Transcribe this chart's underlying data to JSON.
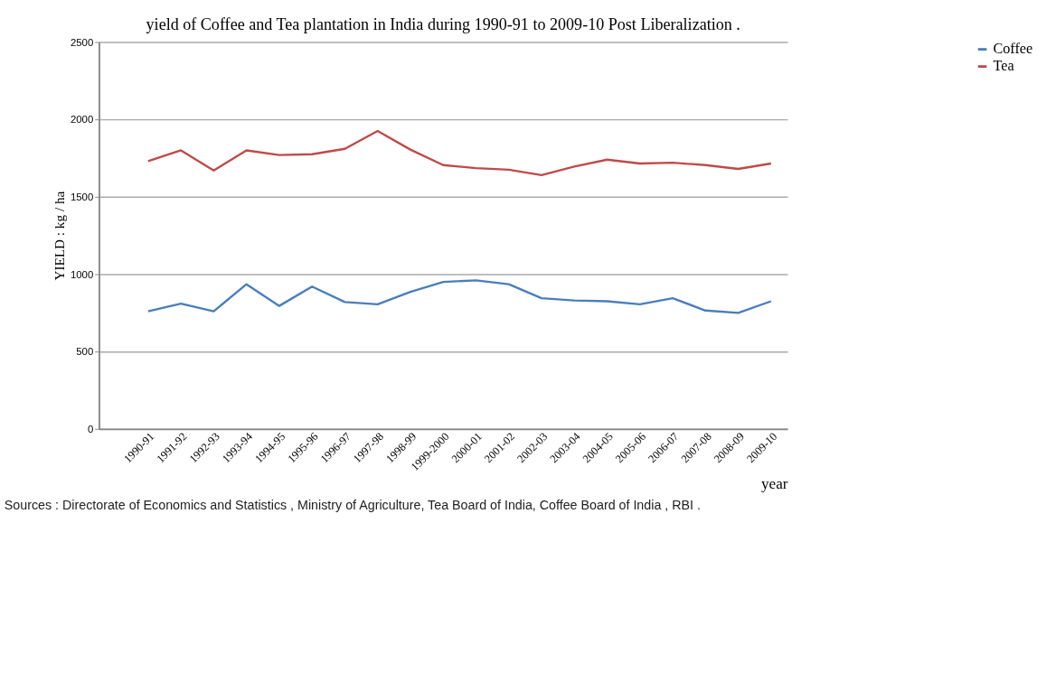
{
  "chart_data": {
    "type": "line",
    "title": "yield of Coffee and Tea plantation in India during  1990-91 to 2009-10 Post Liberalization .",
    "xlabel": "year",
    "ylabel": "YIELD : kg / ha",
    "categories": [
      "1990-91",
      "1991-92",
      "1992-93",
      "1993-94",
      "1994-95",
      "1995-96",
      "1996-97",
      "1997-98",
      "1998-99",
      "1999-2000",
      "2000-01",
      "2001-02",
      "2002-03",
      "2003-04",
      "2004-05",
      "2005-06",
      "2006-07",
      "2007-08",
      "2008-09",
      "2009-10"
    ],
    "series": [
      {
        "name": "Coffee",
        "color": "#4a7ebb",
        "values": [
          760,
          810,
          760,
          935,
          795,
          920,
          820,
          805,
          885,
          950,
          960,
          935,
          845,
          830,
          825,
          805,
          845,
          765,
          750,
          825
        ]
      },
      {
        "name": "Tea",
        "color": "#be4b48",
        "values": [
          1730,
          1800,
          1670,
          1800,
          1770,
          1775,
          1810,
          1925,
          1805,
          1705,
          1685,
          1675,
          1640,
          1695,
          1740,
          1715,
          1720,
          1705,
          1680,
          1715
        ]
      }
    ],
    "ylim": [
      0,
      2500
    ],
    "yticks": [
      0,
      500,
      1000,
      1500,
      2000,
      2500
    ],
    "grid": "y",
    "legend": "right",
    "marker": "none",
    "line_style": "solid",
    "annotations": [
      "Sources :  Directorate of Economics and Statistics , Ministry of Agriculture, Tea Board of India, Coffee Board of India , RBI ."
    ]
  }
}
